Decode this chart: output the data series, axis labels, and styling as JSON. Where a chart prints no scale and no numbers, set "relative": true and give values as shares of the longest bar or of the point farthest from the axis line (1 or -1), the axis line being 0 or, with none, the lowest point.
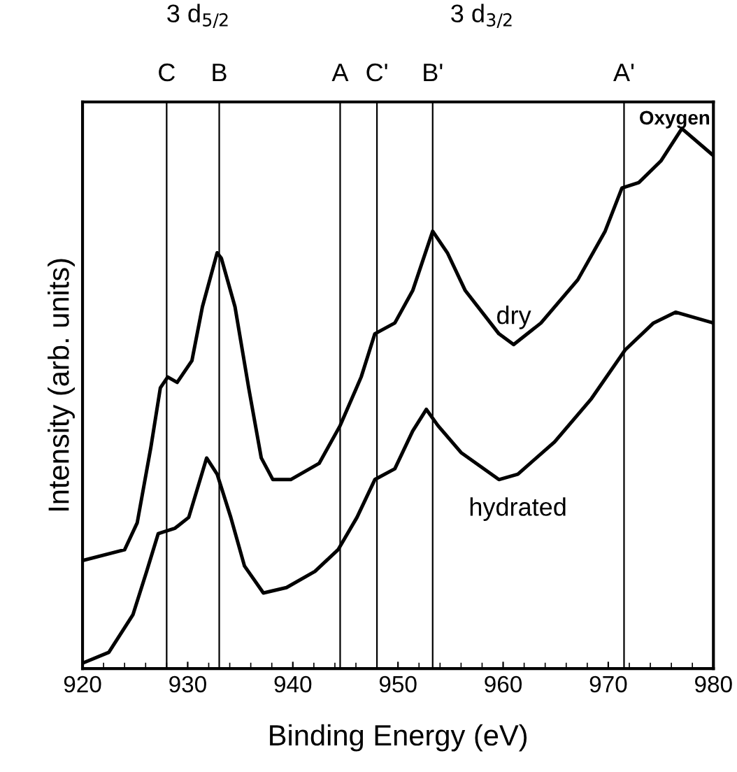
{
  "chart_data": {
    "type": "line",
    "relative": true,
    "xlabel": "Binding Energy (eV)",
    "ylabel": "Intensity (arb. units)",
    "xlim": [
      920,
      980
    ],
    "xticks": [
      920,
      930,
      940,
      950,
      960,
      970,
      980
    ],
    "grid": false,
    "legend": false,
    "marker": "none",
    "line_style": "solid",
    "tick_labels": "x",
    "annotations": [
      "3 d$_{5/2}$",
      "3 d$_{3/2}$",
      "Oxygen"
    ],
    "ref_lines": [
      {
        "axis": "x",
        "value": 928,
        "label": "C",
        "color": "#000000"
      },
      {
        "axis": "x",
        "value": 933,
        "label": "B",
        "color": "#000000"
      },
      {
        "axis": "x",
        "value": 944.5,
        "label": "A",
        "color": "#000000"
      },
      {
        "axis": "x",
        "value": 948,
        "label": "C'",
        "color": "#000000"
      },
      {
        "axis": "x",
        "value": 953.3,
        "label": "B'",
        "color": "#000000"
      },
      {
        "axis": "x",
        "value": 971.5,
        "label": "A'",
        "color": "#000000"
      }
    ],
    "series": [
      {
        "name": "dry",
        "color": "#000000",
        "x": [
          920,
          924,
          925.2,
          926.5,
          927.4,
          928.1,
          929,
          930.4,
          931.4,
          932.8,
          933.2,
          934.5,
          935.8,
          937,
          938.1,
          939.8,
          942.5,
          944.5,
          946.5,
          947.8,
          949.7,
          951.4,
          953.3,
          954.7,
          956.4,
          959.6,
          961,
          963.6,
          967.1,
          969.7,
          971.3,
          972.9,
          975,
          977,
          980
        ],
        "values": [
          0.2,
          0.22,
          0.27,
          0.41,
          0.52,
          0.54,
          0.53,
          0.57,
          0.67,
          0.77,
          0.76,
          0.67,
          0.52,
          0.39,
          0.35,
          0.35,
          0.38,
          0.45,
          0.54,
          0.62,
          0.64,
          0.7,
          0.81,
          0.77,
          0.7,
          0.62,
          0.6,
          0.64,
          0.72,
          0.81,
          0.89,
          0.9,
          0.94,
          1.0,
          0.95
        ]
      },
      {
        "name": "hydrated",
        "color": "#000000",
        "x": [
          920,
          922.5,
          924.8,
          926.1,
          927.2,
          928.8,
          930.1,
          931.8,
          932.8,
          934.1,
          935.4,
          937.2,
          939.4,
          942.1,
          944.3,
          946.1,
          947.8,
          949.7,
          951.4,
          952.7,
          953.8,
          956,
          959.6,
          961.4,
          964.9,
          968.4,
          971.6,
          974.3,
          976.4,
          980
        ],
        "values": [
          0.01,
          0.03,
          0.1,
          0.18,
          0.25,
          0.26,
          0.28,
          0.39,
          0.36,
          0.28,
          0.19,
          0.14,
          0.15,
          0.18,
          0.22,
          0.28,
          0.35,
          0.37,
          0.44,
          0.48,
          0.45,
          0.4,
          0.35,
          0.36,
          0.42,
          0.5,
          0.59,
          0.64,
          0.66,
          0.64
        ]
      }
    ]
  }
}
